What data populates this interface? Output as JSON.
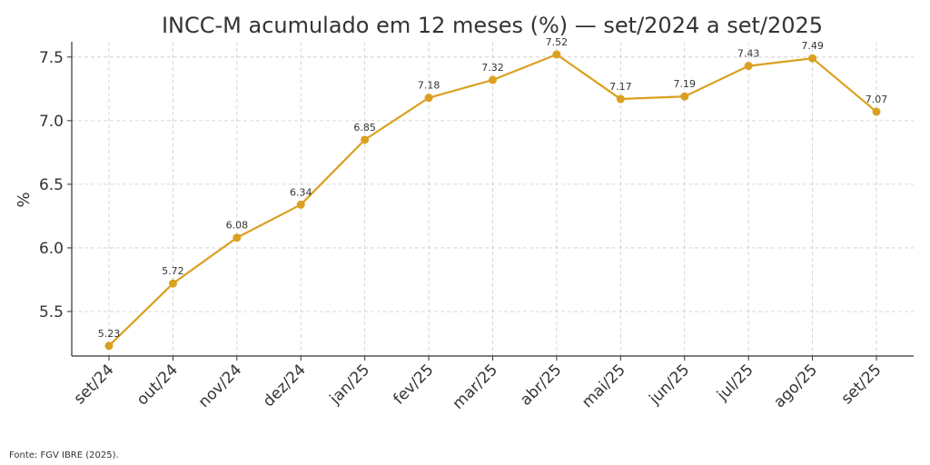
{
  "chart_data": {
    "type": "line",
    "title": "INCC-M acumulado em 12 meses (%) — set/2024 a set/2025",
    "xlabel": "",
    "ylabel": "%",
    "categories": [
      "set/24",
      "out/24",
      "nov/24",
      "dez/24",
      "jan/25",
      "fev/25",
      "mar/25",
      "abr/25",
      "mai/25",
      "jun/25",
      "jul/25",
      "ago/25",
      "set/25"
    ],
    "series": [
      {
        "values": [
          5.23,
          5.72,
          6.08,
          6.34,
          6.85,
          7.18,
          7.32,
          7.52,
          7.17,
          7.19,
          7.43,
          7.49,
          7.07
        ]
      }
    ],
    "data_labels": [
      "5.23",
      "5.72",
      "6.08",
      "6.34",
      "6.85",
      "7.18",
      "7.32",
      "7.52",
      "7.17",
      "7.19",
      "7.43",
      "7.49",
      "7.07"
    ],
    "ylim": [
      5.15,
      7.62
    ],
    "yticks": [
      5.5,
      6.0,
      6.5,
      7.0,
      7.5
    ],
    "ytick_labels": [
      "5.5",
      "6.0",
      "6.5",
      "7.0",
      "7.5"
    ],
    "grid": true,
    "line_color": "#DAA01F",
    "grid_color": "#cccccc",
    "text_color": "#333333"
  },
  "footnote": "Fonte: FGV IBRE (2025)."
}
